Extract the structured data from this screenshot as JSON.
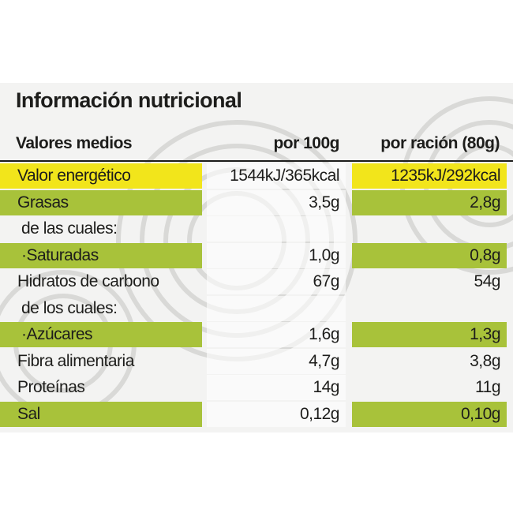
{
  "title": "Información nutricional",
  "table": {
    "headers": [
      "Valores medios",
      "por 100g",
      "por ración (80g)"
    ],
    "rows": [
      {
        "cells": [
          "Valor energético",
          "1544kJ/365kcal",
          "1235kJ/292kcal"
        ],
        "highlight": "#f2e51b"
      },
      {
        "cells": [
          "Grasas",
          "3,5g",
          "2,8g"
        ],
        "highlight": "#a8c23a"
      },
      {
        "cells": [
          "de las cuales:",
          "",
          ""
        ],
        "sub": true
      },
      {
        "cells": [
          "·Saturadas",
          "1,0g",
          "0,8g"
        ],
        "highlight": "#a8c23a",
        "sub": true
      },
      {
        "cells": [
          "Hidratos de carbono",
          "67g",
          "54g"
        ]
      },
      {
        "cells": [
          "de los cuales:",
          "",
          ""
        ],
        "sub": true
      },
      {
        "cells": [
          "·Azúcares",
          "1,6g",
          "1,3g"
        ],
        "highlight": "#a8c23a",
        "sub": true
      },
      {
        "cells": [
          "Fibra alimentaria",
          "4,7g",
          "3,8g"
        ]
      },
      {
        "cells": [
          "Proteínas",
          "14g",
          "11g"
        ]
      },
      {
        "cells": [
          "Sal",
          "0,12g",
          "0,10g"
        ],
        "highlight": "#a8c23a"
      }
    ]
  }
}
